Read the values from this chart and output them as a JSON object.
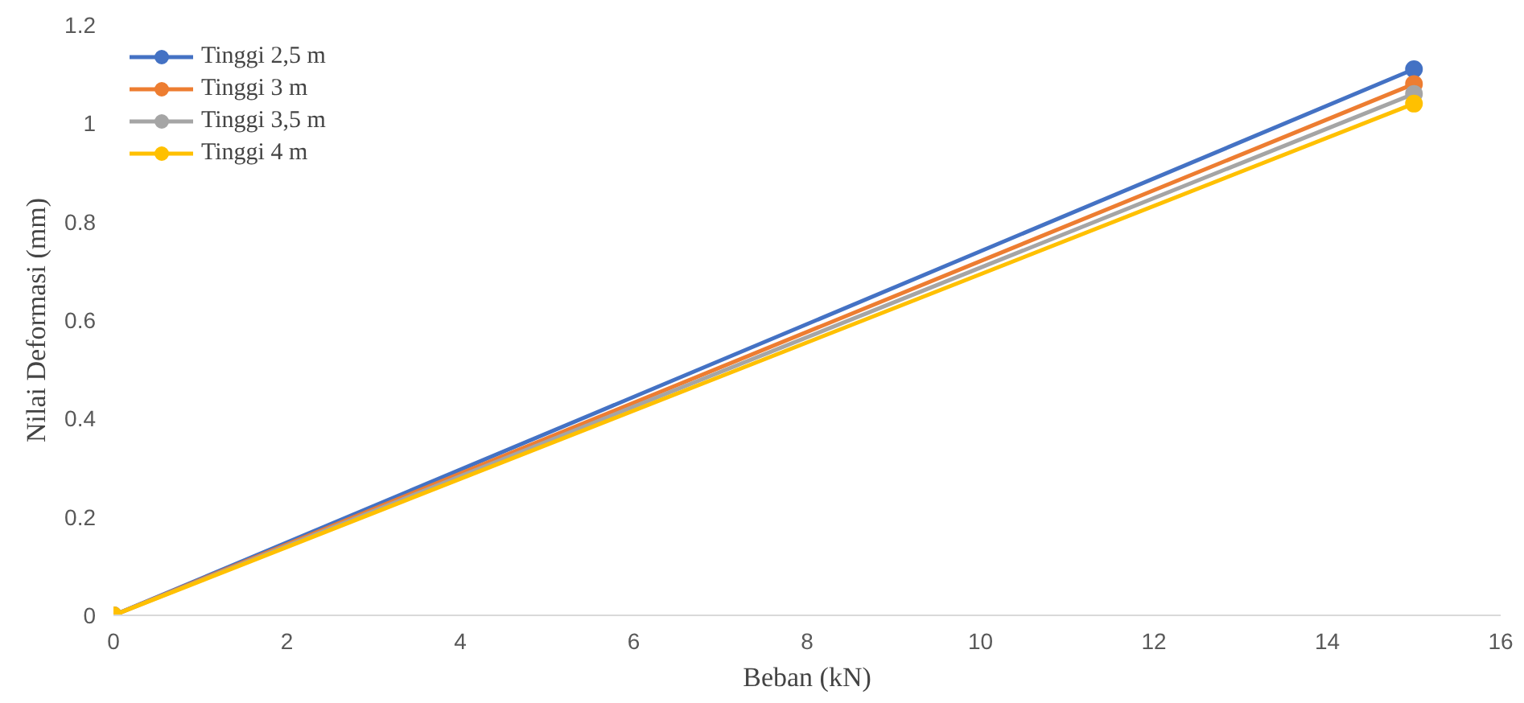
{
  "chart_data": {
    "type": "line",
    "xlabel": "Beban (kN)",
    "ylabel": "Nilai Deformasi (mm)",
    "x": [
      0,
      15
    ],
    "series": [
      {
        "name": "Tinggi 2,5 m",
        "color": "#4472c4",
        "values": [
          0,
          1.11
        ]
      },
      {
        "name": "Tinggi 3 m",
        "color": "#ed7d31",
        "values": [
          0,
          1.08
        ]
      },
      {
        "name": "Tinggi 3,5 m",
        "color": "#a5a5a5",
        "values": [
          0,
          1.06
        ]
      },
      {
        "name": "Tinggi 4 m",
        "color": "#ffc000",
        "values": [
          0,
          1.04
        ]
      }
    ],
    "xlim": [
      0,
      16
    ],
    "xticks": [
      0,
      2,
      4,
      6,
      8,
      10,
      12,
      14,
      16
    ],
    "ylim": [
      0,
      1.2
    ],
    "yticks": [
      0,
      0.2,
      0.4,
      0.6,
      0.8,
      1,
      1.2
    ],
    "grid": false,
    "legend": "top left",
    "marker": "circle",
    "line_style": "solid"
  }
}
